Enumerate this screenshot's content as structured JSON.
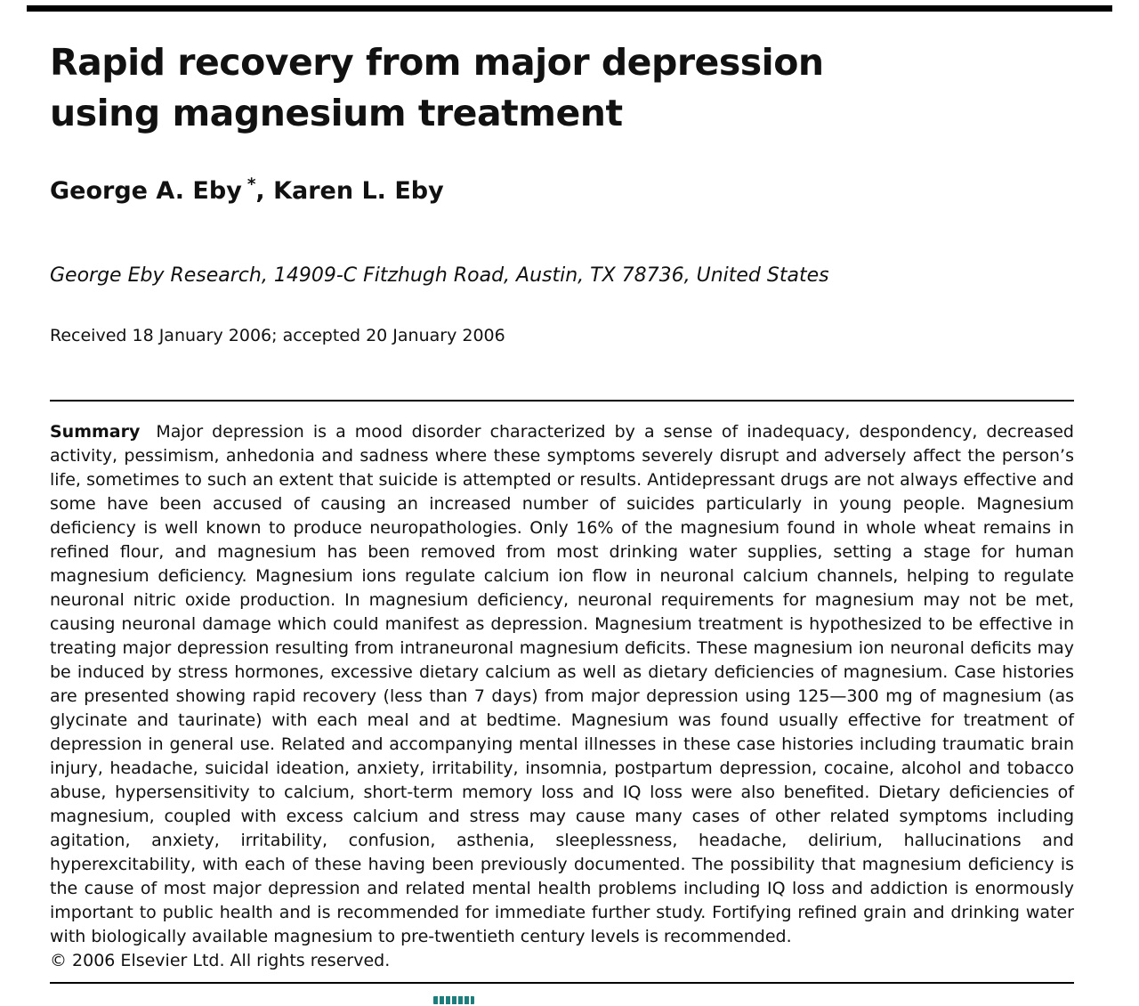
{
  "colors": {
    "text": "#111111",
    "rule_black": "#000000",
    "accent_teal": "#1d7c7c"
  },
  "header": {
    "title_line1": "Rapid recovery from major depression",
    "title_line2": "using magnesium treatment",
    "authors_first": "George A. Eby",
    "corresponding_mark": "*",
    "authors_rest": ", Karen L. Eby",
    "affiliation": "George Eby Research, 14909-C Fitzhugh Road, Austin, TX 78736, United States",
    "received": "Received 18 January 2006; accepted 20 January 2006"
  },
  "summary": {
    "label": "Summary",
    "body": "Major depression is a mood disorder characterized by a sense of inadequacy, despondency, decreased activity, pessimism, anhedonia and sadness where these symptoms severely disrupt and adversely affect the person’s life, sometimes to such an extent that suicide is attempted or results. Antidepressant drugs are not always effective and some have been accused of causing an increased number of suicides particularly in young people. Magnesium deficiency is well known to produce neuropathologies. Only 16% of the magnesium found in whole wheat remains in refined flour, and magnesium has been removed from most drinking water supplies, setting a stage for human magnesium deficiency. Magnesium ions regulate calcium ion flow in neuronal calcium channels, helping to regulate neuronal nitric oxide production. In magnesium deficiency, neuronal requirements for magnesium may not be met, causing neuronal damage which could manifest as depression. Magnesium treatment is hypothesized to be effective in treating major depression resulting from intraneuronal magnesium deficits. These magnesium ion neuronal deficits may be induced by stress hormones, excessive dietary calcium as well as dietary deficiencies of magnesium. Case histories are presented showing rapid recovery (less than 7 days) from major depression using 125—300 mg of magnesium (as glycinate and taurinate) with each meal and at bedtime. Magnesium was found usually effective for treatment of depression in general use. Related and accompanying mental illnesses in these case histories including traumatic brain injury, headache, suicidal ideation, anxiety, irritability, insomnia, postpartum depression, cocaine, alcohol and tobacco abuse, hypersensitivity to calcium, short-term memory loss and IQ loss were also benefited. Dietary deficiencies of magnesium, coupled with excess calcium and stress may cause many cases of other related symptoms including agitation, anxiety, irritability, confusion, asthenia, sleeplessness, headache, delirium, hallucinations and hyperexcitability, with each of these having been previously documented. The possibility that magnesium deficiency is the cause of most major depression and related mental health problems including IQ loss and addiction is enormously important to public health and is recommended for immediate further study. Fortifying refined grain and drinking water with biologically available magnesium to pre-twentieth century levels is recommended.",
    "copyright": "© 2006 Elsevier Ltd. All rights reserved."
  }
}
